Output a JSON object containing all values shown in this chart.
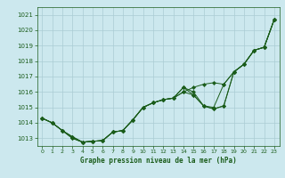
{
  "xlabel": "Graphe pression niveau de la mer (hPa)",
  "ylim": [
    1012.5,
    1021.5
  ],
  "xlim": [
    -0.5,
    23.5
  ],
  "yticks": [
    1013,
    1014,
    1015,
    1016,
    1017,
    1018,
    1019,
    1020,
    1021
  ],
  "xticks": [
    0,
    1,
    2,
    3,
    4,
    5,
    6,
    7,
    8,
    9,
    10,
    11,
    12,
    13,
    14,
    15,
    16,
    17,
    18,
    19,
    20,
    21,
    22,
    23
  ],
  "bg_color": "#cce8ee",
  "grid_color": "#aaccd4",
  "line_color": "#1a5c1a",
  "series": [
    [
      1014.3,
      1014.0,
      1013.5,
      1013.0,
      1012.75,
      1012.8,
      1012.85,
      1013.4,
      1013.5,
      1014.2,
      1015.0,
      1015.3,
      1015.5,
      1015.6,
      1016.0,
      1016.3,
      1016.5,
      1016.6,
      1016.5,
      1017.3,
      1017.8,
      1018.7,
      1018.9,
      1020.7
    ],
    [
      1014.3,
      1014.0,
      1013.5,
      1013.0,
      1012.75,
      1012.8,
      1012.85,
      1013.4,
      1013.5,
      1014.2,
      1015.0,
      1015.3,
      1015.5,
      1015.6,
      1016.0,
      1015.8,
      1015.1,
      1015.0,
      1016.5,
      1017.3,
      1017.8,
      1018.7,
      1018.9,
      1020.7
    ],
    [
      1014.3,
      1014.0,
      1013.5,
      1013.1,
      1012.75,
      1012.8,
      1012.85,
      1013.4,
      1013.5,
      1014.2,
      1015.0,
      1015.3,
      1015.5,
      1015.6,
      1016.3,
      1016.0,
      1015.1,
      1014.9,
      1015.1,
      1017.3,
      1017.8,
      1018.7,
      1018.9,
      1020.7
    ],
    [
      1014.3,
      1014.0,
      1013.5,
      1013.1,
      1012.75,
      1012.8,
      1012.85,
      1013.4,
      1013.5,
      1014.2,
      1015.0,
      1015.3,
      1015.5,
      1015.6,
      1016.3,
      1015.8,
      1015.1,
      1014.9,
      1015.1,
      1017.3,
      1017.8,
      1018.7,
      1018.9,
      1020.7
    ]
  ]
}
